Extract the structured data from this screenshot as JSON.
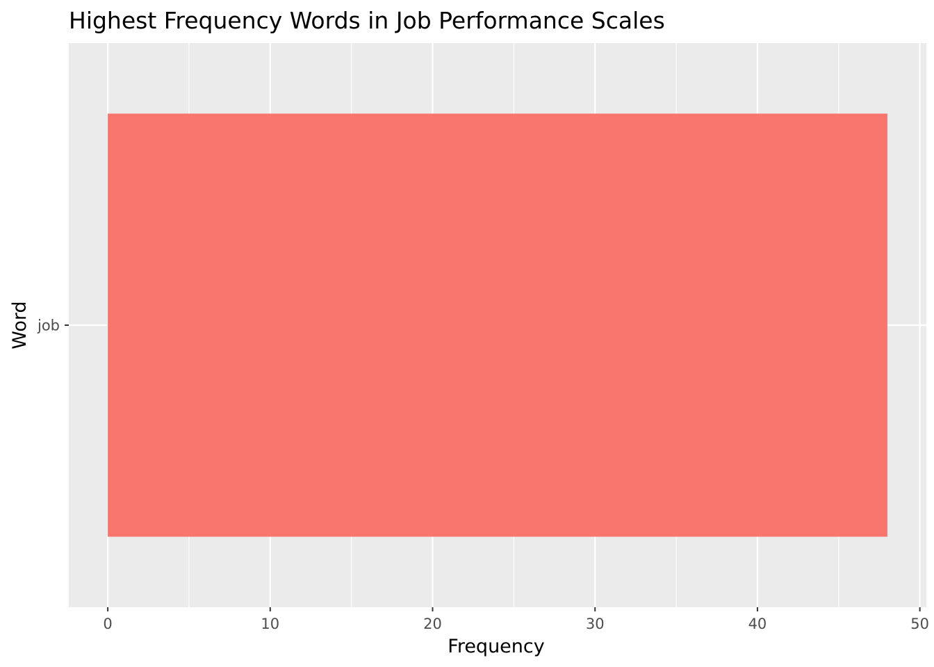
{
  "chart_data": {
    "type": "bar",
    "orientation": "horizontal",
    "title": "Highest Frequency Words in Job Performance Scales",
    "xlabel": "Frequency",
    "ylabel": "Word",
    "categories": [
      "job"
    ],
    "values": [
      48
    ],
    "xlim": [
      -2.4,
      50.4
    ],
    "xticks": [
      0,
      10,
      20,
      30,
      40,
      50
    ],
    "xticks_minor": [
      5,
      15,
      25,
      35,
      45
    ],
    "grid": true,
    "legend": "none",
    "colors": {
      "bar": "#F8766D",
      "panel": "#EBEBEB",
      "grid": "#FFFFFF",
      "tick_text": "#4D4D4D",
      "tick_mark": "#333333"
    }
  }
}
